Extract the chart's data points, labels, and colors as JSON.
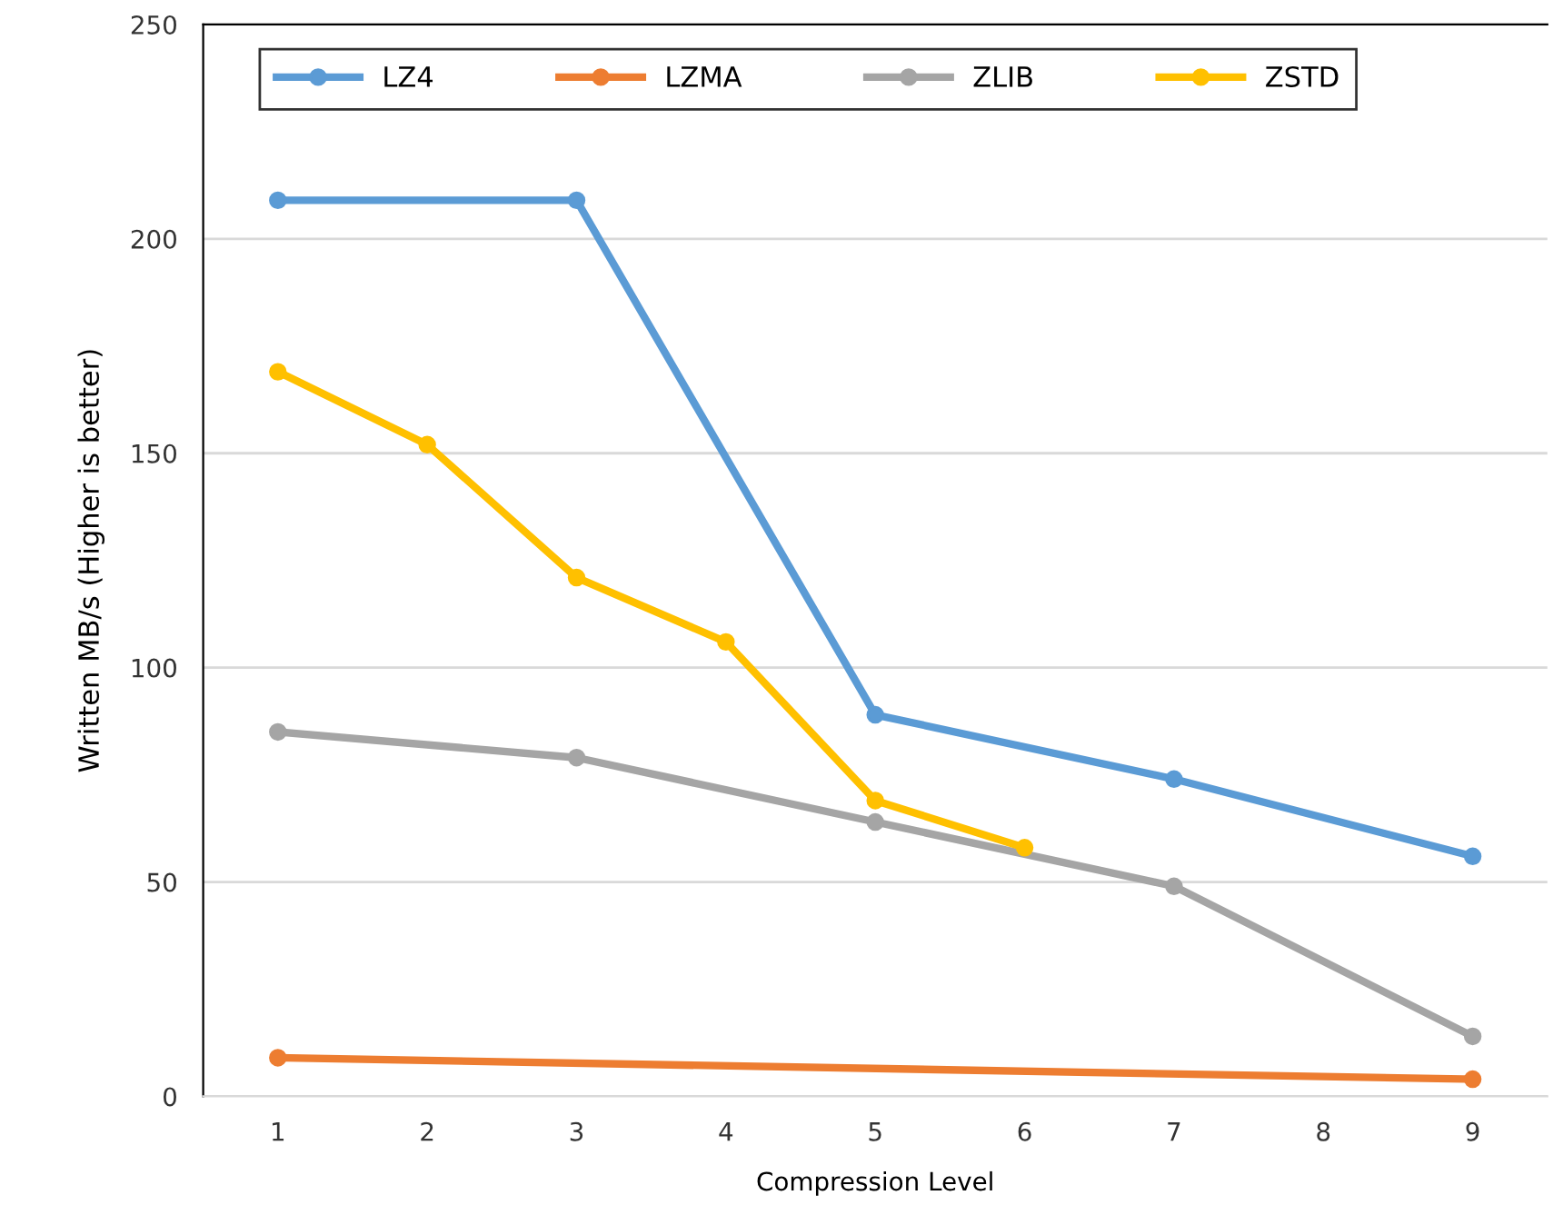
{
  "chart_data": {
    "type": "line",
    "xlabel": "Compression Level",
    "ylabel": "Written MB/s (Higher is better)",
    "xlim": [
      0.5,
      9.5
    ],
    "xticks": [
      1,
      2,
      3,
      4,
      5,
      6,
      7,
      8,
      9
    ],
    "ylim": [
      0,
      250
    ],
    "yticks": [
      0,
      50,
      100,
      150,
      200,
      250
    ],
    "grid": "y",
    "legend": "top",
    "marker": "circle",
    "line_style": "solid",
    "series": [
      {
        "name": "LZ4",
        "color": "#5b9bd5",
        "x": [
          1,
          3,
          5,
          7,
          9
        ],
        "values": [
          209,
          209,
          89,
          74,
          56
        ]
      },
      {
        "name": "LZMA",
        "color": "#ed7d31",
        "x": [
          1,
          9
        ],
        "values": [
          9,
          4
        ]
      },
      {
        "name": "ZLIB",
        "color": "#a5a5a5",
        "x": [
          1,
          3,
          5,
          7,
          9
        ],
        "values": [
          85,
          79,
          64,
          49,
          14
        ]
      },
      {
        "name": "ZSTD",
        "color": "#ffc000",
        "x": [
          1,
          2,
          3,
          4,
          5,
          6
        ],
        "values": [
          169,
          152,
          121,
          106,
          69,
          58
        ]
      }
    ]
  }
}
